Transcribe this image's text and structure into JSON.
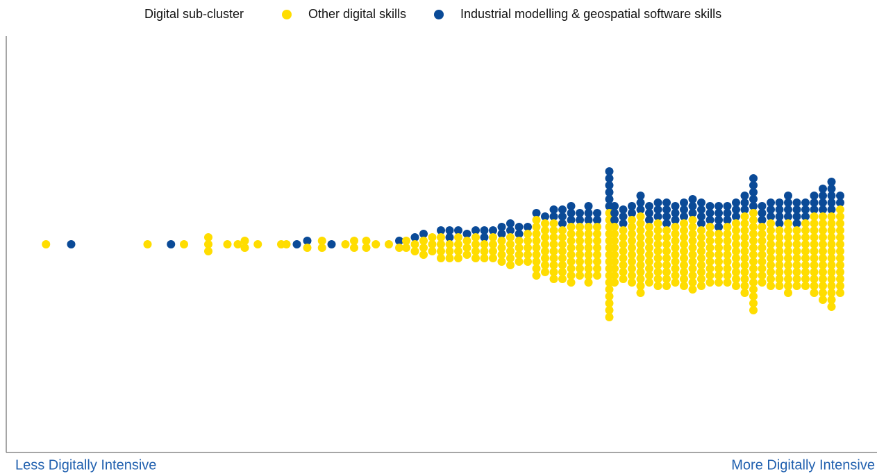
{
  "chart_data": {
    "type": "beeswarm",
    "legend_title": "Digital sub-cluster",
    "x_label_left": "Less Digitally Intensive",
    "x_label_right": "More Digitally Intensive",
    "xlim": [
      0,
      100
    ],
    "legend_position": "top",
    "series": [
      {
        "name": "Other digital skills",
        "color": "#ffdd00",
        "x": [
          4.5,
          16.2,
          20.4,
          23.2,
          23.2,
          23.2,
          25.4,
          26.6,
          27.4,
          27.4,
          28.9,
          31.6,
          32.2,
          34.6,
          36.3,
          36.3,
          39,
          40,
          40,
          41.4,
          41.4,
          42.5,
          44,
          45.2,
          46,
          46,
          47,
          47,
          48,
          48,
          48,
          49,
          49,
          49,
          50,
          50,
          50,
          50,
          51,
          51,
          51,
          52,
          52,
          52,
          52,
          53,
          53,
          53,
          54,
          54,
          54,
          54,
          55,
          55,
          55,
          56,
          56,
          56,
          56,
          57,
          57,
          57,
          57,
          58,
          58,
          58,
          58,
          58,
          59,
          59,
          59,
          59,
          60,
          60,
          60,
          60,
          60,
          61,
          61,
          61,
          61,
          61,
          61,
          61,
          61,
          61,
          62,
          62,
          62,
          62,
          62,
          62,
          62,
          62,
          63,
          63,
          63,
          63,
          63,
          63,
          63,
          63,
          63,
          64,
          64,
          64,
          64,
          64,
          64,
          64,
          64,
          65,
          65,
          65,
          65,
          65,
          65,
          65,
          65,
          65,
          66,
          66,
          66,
          66,
          66,
          66,
          66,
          66,
          67,
          67,
          67,
          67,
          67,
          67,
          67,
          67,
          67,
          68,
          68,
          68,
          68,
          68,
          68,
          68,
          68,
          69.4,
          69.4,
          69.4,
          69.4,
          69.4,
          69.4,
          69.4,
          69.4,
          69.4,
          69.4,
          69.4,
          69.4,
          69.4,
          69.4,
          69.4,
          69.4,
          70,
          70,
          70,
          70,
          70,
          70,
          70,
          70,
          70,
          71,
          71,
          71,
          71,
          71,
          71,
          71,
          71,
          72,
          72,
          72,
          72,
          72,
          72,
          72,
          72,
          72,
          72,
          73,
          73,
          73,
          73,
          73,
          73,
          73,
          73,
          73,
          73,
          73,
          73,
          74,
          74,
          74,
          74,
          74,
          74,
          74,
          74,
          74,
          75,
          75,
          75,
          75,
          75,
          75,
          75,
          75,
          75,
          75,
          76,
          76,
          76,
          76,
          76,
          76,
          76,
          76,
          76,
          77,
          77,
          77,
          77,
          77,
          77,
          77,
          77,
          77,
          78,
          78,
          78,
          78,
          78,
          78,
          78,
          78,
          78,
          78,
          79,
          79,
          79,
          79,
          79,
          79,
          79,
          79,
          79,
          79,
          79,
          80,
          80,
          80,
          80,
          80,
          80,
          80,
          80,
          80,
          81,
          81,
          81,
          81,
          81,
          81,
          81,
          81,
          81,
          82,
          82,
          82,
          82,
          82,
          82,
          82,
          82,
          83,
          83,
          83,
          83,
          83,
          83,
          83,
          83,
          83,
          84,
          84,
          84,
          84,
          84,
          84,
          84,
          84,
          84,
          84,
          85,
          85,
          85,
          85,
          85,
          85,
          85,
          85,
          85,
          85,
          85,
          85,
          86,
          86,
          86,
          86,
          86,
          86,
          86,
          86,
          86,
          86,
          86,
          86,
          86,
          86,
          86,
          87,
          87,
          87,
          87,
          87,
          87,
          87,
          87,
          87,
          88,
          88,
          88,
          88,
          88,
          88,
          88,
          88,
          88,
          88,
          89,
          89,
          89,
          89,
          89,
          89,
          89,
          89,
          89,
          90,
          90,
          90,
          90,
          90,
          90,
          90,
          90,
          90,
          90,
          90,
          91,
          91,
          91,
          91,
          91,
          91,
          91,
          91,
          91,
          92,
          92,
          92,
          92,
          92,
          92,
          92,
          92,
          92,
          92,
          93,
          93,
          93,
          93,
          93,
          93,
          93,
          93,
          93,
          93,
          93,
          93,
          94,
          94,
          94,
          94,
          94,
          94,
          94,
          94,
          94,
          94,
          94,
          94,
          94,
          95,
          95,
          95,
          95,
          95,
          95,
          95,
          95,
          95,
          95,
          95,
          95,
          95,
          95,
          96,
          96,
          96,
          96,
          96,
          96,
          96,
          96,
          96,
          96,
          96,
          96,
          96
        ]
      },
      {
        "name": "Industrial modelling & geospatial software skills",
        "color": "#0a4a97",
        "x": [
          7.4,
          18.9,
          33.4,
          34.6,
          37.4,
          45.2,
          47,
          48,
          50,
          51,
          51,
          52,
          53,
          54,
          55,
          55,
          56,
          57,
          57,
          58,
          58,
          59,
          59,
          60,
          61,
          62,
          63,
          63,
          64,
          64,
          64,
          65,
          65,
          65,
          66,
          66,
          67,
          67,
          67,
          68,
          68,
          69.4,
          69.4,
          69.4,
          69.4,
          69.4,
          69.4,
          70,
          70,
          70,
          71,
          71,
          71,
          72,
          72,
          73,
          73,
          73,
          74,
          74,
          74,
          75,
          75,
          75,
          76,
          76,
          76,
          76,
          77,
          77,
          77,
          78,
          78,
          78,
          79,
          79,
          79,
          80,
          80,
          80,
          80,
          81,
          81,
          81,
          82,
          82,
          82,
          82,
          83,
          83,
          83,
          84,
          84,
          84,
          85,
          85,
          85,
          86,
          86,
          86,
          86,
          86,
          87,
          87,
          87,
          88,
          88,
          88,
          89,
          89,
          89,
          89,
          90,
          90,
          90,
          90,
          91,
          91,
          91,
          91,
          92,
          92,
          92,
          93,
          93,
          93,
          94,
          94,
          94,
          94,
          95,
          95,
          95,
          95,
          95,
          96,
          96
        ]
      }
    ]
  }
}
